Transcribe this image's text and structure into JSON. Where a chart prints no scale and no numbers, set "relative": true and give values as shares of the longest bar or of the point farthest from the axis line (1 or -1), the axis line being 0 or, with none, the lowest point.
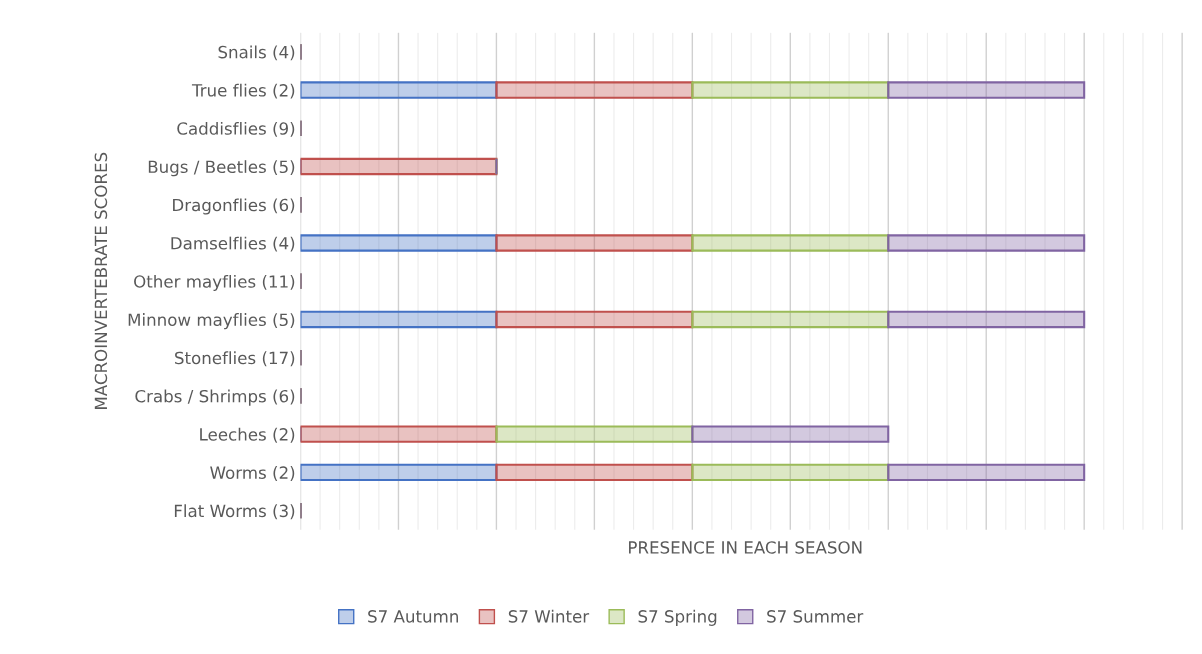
{
  "chart_data": {
    "type": "bar",
    "orientation": "horizontal",
    "stacked": true,
    "relative": true,
    "xlabel": "PRESENCE IN EACH SEASON",
    "ylabel": "MACROINVERTEBRATE SCORES",
    "categories": [
      "Snails (4)",
      "True flies (2)",
      "Caddisflies (9)",
      "Bugs / Beetles (5)",
      "Dragonflies (6)",
      "Damselflies (4)",
      "Other mayflies (11)",
      "Minnow mayflies (5)",
      "Stoneflies (17)",
      "Crabs / Shrimps (6)",
      "Leeches (2)",
      "Worms (2)",
      "Flat Worms (3)"
    ],
    "series": [
      {
        "name": "S7 Autumn",
        "color": "#4472c4",
        "values": [
          0,
          0.25,
          0,
          0,
          0,
          0.25,
          0,
          0.25,
          0,
          0,
          0,
          0.25,
          0
        ]
      },
      {
        "name": "S7 Winter",
        "color": "#c0504d",
        "values": [
          0,
          0.25,
          0,
          0.25,
          0,
          0.25,
          0,
          0.25,
          0,
          0,
          0.25,
          0.25,
          0
        ]
      },
      {
        "name": "S7 Spring",
        "color": "#9bbb59",
        "values": [
          0,
          0.25,
          0,
          0,
          0,
          0.25,
          0,
          0.25,
          0,
          0,
          0.25,
          0.25,
          0
        ]
      },
      {
        "name": "S7 Summer",
        "color": "#8064a2",
        "values": [
          0,
          0.25,
          0,
          0,
          0,
          0.25,
          0,
          0.25,
          0,
          0,
          0.25,
          0.25,
          0
        ]
      }
    ],
    "grid": "x",
    "legend": "bottom"
  }
}
